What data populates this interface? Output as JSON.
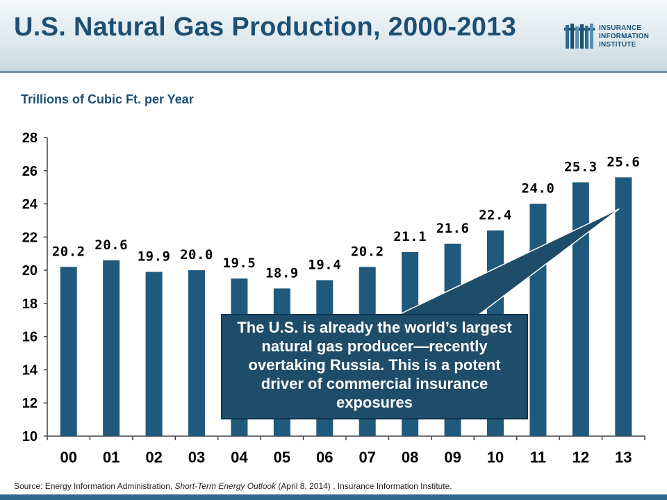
{
  "title": "U.S. Natural Gas Production, 2000-2013",
  "logo": {
    "lines": [
      "INSURANCE",
      "INFORMATION",
      "INSTITUTE"
    ]
  },
  "colors": {
    "title": "#1d4f73",
    "bar": "#1f5a7c",
    "callout_bg": "#1f4c68",
    "footer": "#2f6a8c"
  },
  "chart_data": {
    "type": "bar",
    "ylabel": "Trillions of Cubic Ft. per Year",
    "categories": [
      "00",
      "01",
      "02",
      "03",
      "04",
      "05",
      "06",
      "07",
      "08",
      "09",
      "10",
      "11",
      "12",
      "13"
    ],
    "values": [
      20.2,
      20.6,
      19.9,
      20.0,
      19.5,
      18.9,
      19.4,
      20.2,
      21.1,
      21.6,
      22.4,
      24.0,
      25.3,
      25.6
    ],
    "data_labels": [
      "20.2",
      "20.6",
      "19.9",
      "20.0",
      "19.5",
      "18.9",
      "19.4",
      "20.2",
      "21.1",
      "21.6",
      "22.4",
      "24.0",
      "25.3",
      "25.6"
    ],
    "ylim": [
      10,
      28
    ],
    "yticks": [
      10,
      12,
      14,
      16,
      18,
      20,
      22,
      24,
      26,
      28
    ],
    "grid": false,
    "annotation": "The U.S. is already the world’s largest natural gas producer—recently overtaking Russia.  This is a potent driver of commercial insurance exposures"
  },
  "source": {
    "prefix": "Source: Energy Information Administration, ",
    "italic": "Short-Term Energy Outlook",
    "suffix": " (April 8, 2014) , Insurance Information Institute."
  }
}
